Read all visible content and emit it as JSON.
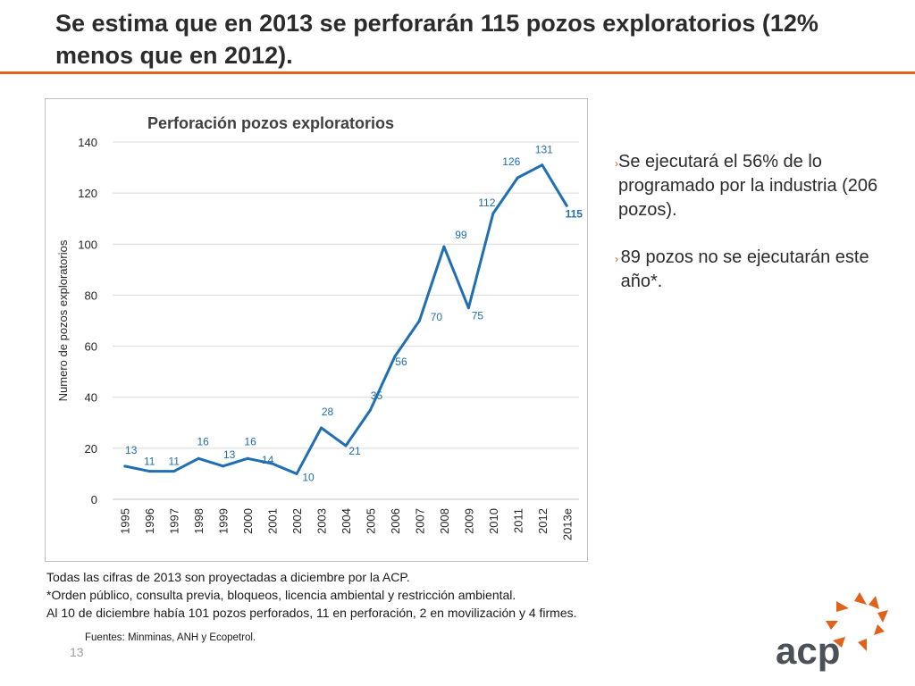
{
  "slide": {
    "title": "Se estima que en 2013 se perforarán 115 pozos exploratorios (12% menos que en 2012).",
    "accent_color": "#e0631c",
    "page_number": "13"
  },
  "bullets": [
    "Se ejecutará el 56% de lo programado por la industria (206 pozos).",
    "89 pozos no se ejecutarán este año*."
  ],
  "notes": [
    "Todas las cifras de 2013 son proyectadas a diciembre por la ACP.",
    "*Orden público, consulta previa, bloqueos, licencia ambiental y  restricción ambiental.",
    "Al 10 de diciembre había 101 pozos perforados, 11 en perforación, 2 en movilización y 4 firmes."
  ],
  "sources": "Fuentes: Minminas, ANH y Ecopetrol.",
  "logo": {
    "text": "acp",
    "icon": "sun-rays-icon"
  },
  "chart_data": {
    "type": "line",
    "title": "Perforación pozos exploratorios",
    "xlabel": "",
    "ylabel": "Numero de pozos exploratorios",
    "categories": [
      "1995",
      "1996",
      "1997",
      "1998",
      "1999",
      "2000",
      "2001",
      "2002",
      "2003",
      "2004",
      "2005",
      "2006",
      "2007",
      "2008",
      "2009",
      "2010",
      "2011",
      "2012",
      "2013e"
    ],
    "series": [
      {
        "name": "Pozos exploratorios",
        "color": "#1f6fb2",
        "values": [
          13,
          11,
          11,
          16,
          13,
          16,
          14,
          10,
          28,
          21,
          35,
          56,
          70,
          99,
          75,
          112,
          126,
          131,
          115
        ]
      }
    ],
    "ylim": [
      0,
      140
    ],
    "yticks": [
      0,
      20,
      40,
      60,
      80,
      100,
      120,
      140
    ],
    "grid": true,
    "legend": "none"
  }
}
